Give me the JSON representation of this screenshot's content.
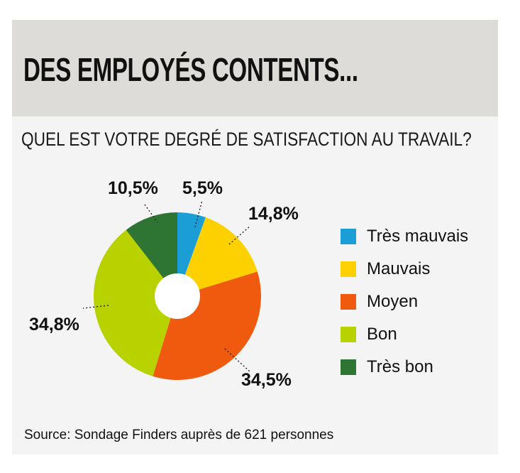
{
  "header": {
    "title": "DES EMPLOYÉS CONTENTS...",
    "subtitle": "QUEL EST VOTRE DEGRÉ DE SATISFACTION AU TRAVAIL?"
  },
  "source": "Source: Sondage Finders auprès de 621 personnes",
  "chart_data": {
    "type": "pie",
    "title": "DES EMPLOYÉS CONTENTS...",
    "subtitle": "QUEL EST VOTRE DEGRÉ DE SATISFACTION AU TRAVAIL?",
    "donut": true,
    "legend_position": "right",
    "slices": [
      {
        "name": "Très mauvais",
        "value": 5.5,
        "label": "5,5%",
        "color": "#1b9ed6"
      },
      {
        "name": "Mauvais",
        "value": 14.8,
        "label": "14,8%",
        "color": "#fdd100"
      },
      {
        "name": "Moyen",
        "value": 34.5,
        "label": "34,5%",
        "color": "#ef5a0f"
      },
      {
        "name": "Bon",
        "value": 34.8,
        "label": "34,8%",
        "color": "#b8d200"
      },
      {
        "name": "Très bon",
        "value": 10.5,
        "label": "10,5%",
        "color": "#2e7533"
      }
    ]
  }
}
